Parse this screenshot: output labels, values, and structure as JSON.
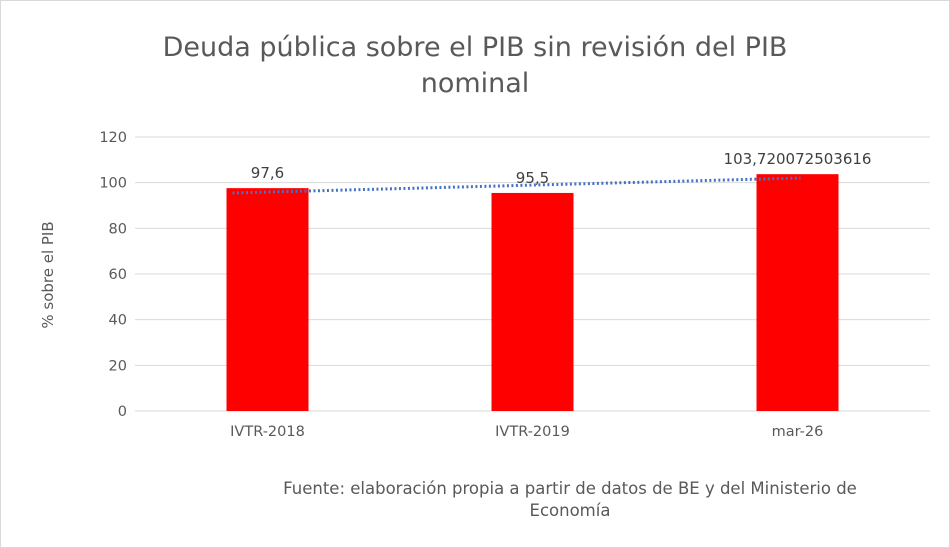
{
  "chart_data": {
    "type": "bar",
    "title_line1": "Deuda pública sobre el PIB sin revisión del PIB",
    "title_line2": "nominal",
    "ylabel": "% sobre el PIB",
    "xlabel": "",
    "categories": [
      "IVTR-2018",
      "IVTR-2019",
      "mar-26"
    ],
    "values": [
      97.6,
      95.5,
      103.720072503616
    ],
    "data_labels": [
      "97,6",
      "95,5",
      "103,720072503616"
    ],
    "ylim": [
      0,
      120
    ],
    "yticks": [
      0,
      20,
      40,
      60,
      80,
      100,
      120
    ],
    "grid": true,
    "legend": "none",
    "trendline": {
      "type": "linear",
      "style": "dotted"
    },
    "bar_color": "#ff0000",
    "trend_color": "#4472c4",
    "grid_color": "#d9d9d9"
  },
  "source": {
    "line1": "Fuente: elaboración propia a partir de datos de BE y del Ministerio de",
    "line2": "Economía"
  }
}
